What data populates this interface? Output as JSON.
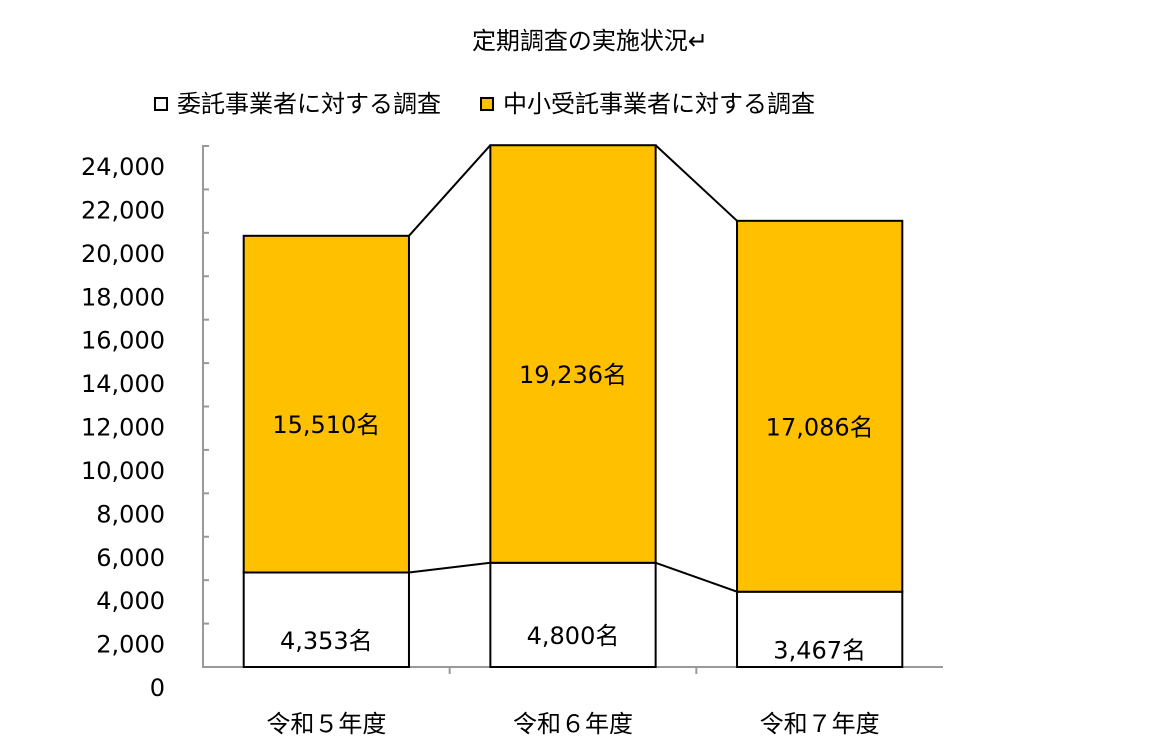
{
  "chart_data": {
    "type": "stacked-bar",
    "title": "定期調査の実施状況↵",
    "categories": [
      "令和５年度",
      "令和６年度",
      "令和７年度"
    ],
    "series": [
      {
        "name": "委託事業者に対する調査",
        "color": "#ffffff",
        "values": [
          4353,
          4800,
          3467
        ],
        "value_labels": [
          "4,353名",
          "4,800名",
          "3,467名"
        ]
      },
      {
        "name": "中小受託事業者に対する調査",
        "color": "#ffc000",
        "values": [
          15510,
          19236,
          17086
        ],
        "value_labels": [
          "15,510名",
          "19,236名",
          "17,086名"
        ]
      }
    ],
    "ylim": [
      0,
      24000
    ],
    "yticks": [
      0,
      {
        "value": 2000,
        "label": "2,000"
      },
      {
        "value": 4000,
        "label": "4,000"
      },
      {
        "value": 6000,
        "label": "6,000"
      },
      {
        "value": 8000,
        "label": "8,000"
      },
      {
        "value": 10000,
        "label": "10,000"
      },
      {
        "value": 12000,
        "label": "12,000"
      },
      {
        "value": 14000,
        "label": "14,000"
      },
      {
        "value": 16000,
        "label": "16,000"
      },
      {
        "value": 18000,
        "label": "18,000"
      },
      {
        "value": 20000,
        "label": "20,000"
      },
      {
        "value": 22000,
        "label": "22,000"
      },
      {
        "value": 24000,
        "label": "24,000"
      }
    ],
    "legend": "top"
  }
}
